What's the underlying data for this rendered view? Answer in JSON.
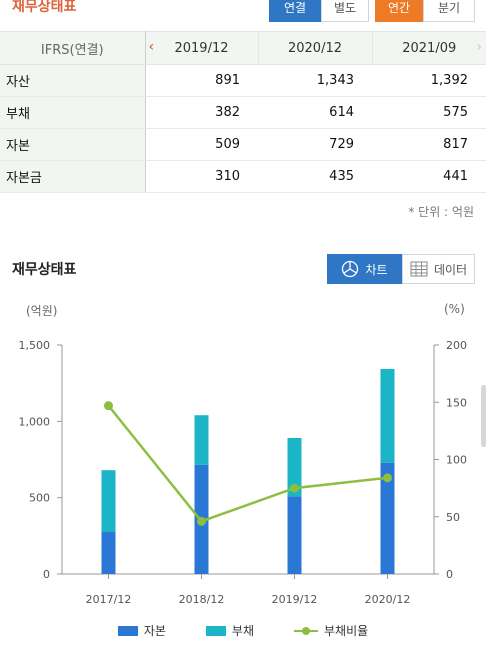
{
  "header": {
    "title": "재무상태표",
    "consolidation": [
      "연결",
      "별도"
    ],
    "period": [
      "연간",
      "분기"
    ]
  },
  "table": {
    "label_header": "IFRS(연결)",
    "periods": [
      "2019/12",
      "2020/12",
      "2021/09"
    ],
    "rows": [
      {
        "label": "자산",
        "values": [
          "891",
          "1,343",
          "1,392"
        ]
      },
      {
        "label": "부채",
        "values": [
          "382",
          "614",
          "575"
        ]
      },
      {
        "label": "자본",
        "values": [
          "509",
          "729",
          "817"
        ]
      },
      {
        "label": "자본금",
        "values": [
          "310",
          "435",
          "441"
        ]
      }
    ],
    "unit_note": "* 단위 : 억원"
  },
  "chart_section": {
    "title": "재무상태표",
    "chart_button": "차트",
    "data_button": "데이터"
  },
  "colors": {
    "equity": "#2b77d6",
    "liability": "#1bb5c7",
    "ratio": "#8cbf3f",
    "accent_blue": "#2f76c5",
    "accent_orange": "#ee7a26",
    "title_red": "#e0623a"
  },
  "chart_data": {
    "type": "bar",
    "stacked": true,
    "categories": [
      "2017/12",
      "2018/12",
      "2019/12",
      "2020/12"
    ],
    "series": [
      {
        "name": "자본",
        "type": "bar",
        "axis": "left",
        "values": [
          275,
          715,
          509,
          729
        ]
      },
      {
        "name": "부채",
        "type": "bar",
        "axis": "left",
        "values": [
          405,
          325,
          382,
          614
        ]
      },
      {
        "name": "부채비율",
        "type": "line",
        "axis": "right",
        "values": [
          147,
          46,
          75,
          84
        ]
      }
    ],
    "y_left": {
      "label": "(억원)",
      "range": [
        0,
        1500
      ],
      "ticks": [
        "0",
        "500",
        "1,000",
        "1,500"
      ]
    },
    "y_right": {
      "label": "(%)",
      "range": [
        0,
        200
      ],
      "ticks": [
        "0",
        "50",
        "100",
        "150",
        "200"
      ]
    },
    "legend": [
      "자본",
      "부채",
      "부채비율"
    ],
    "legend_position": "bottom",
    "grid": false
  }
}
